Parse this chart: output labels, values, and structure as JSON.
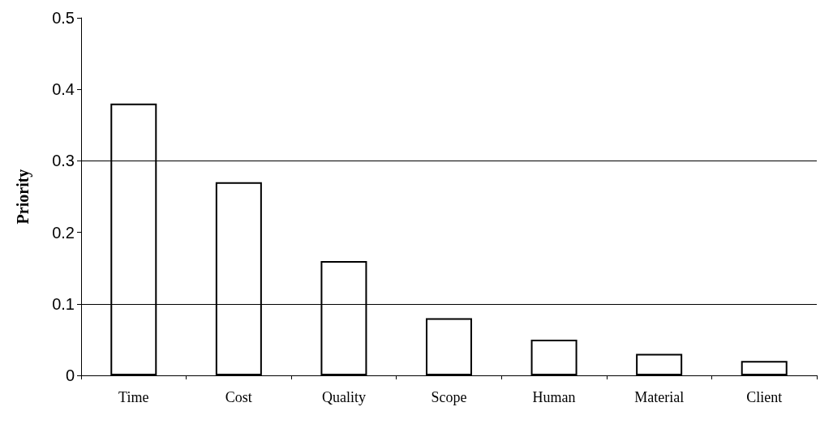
{
  "chart_data": {
    "type": "bar",
    "ylabel": "Priority",
    "categories": [
      "Time",
      "Cost",
      "Quality",
      "Scope",
      "Human",
      "Material",
      "Client"
    ],
    "values": [
      0.38,
      0.27,
      0.16,
      0.08,
      0.05,
      0.03,
      0.02
    ],
    "color": "#ffffff",
    "ylim": [
      0,
      0.5
    ],
    "yticks": [
      0,
      0.1,
      0.2,
      0.3,
      0.4,
      0.5
    ],
    "ref_lines": [
      {
        "axis": "y",
        "value": 0.1
      },
      {
        "axis": "y",
        "value": 0.3
      }
    ],
    "grid": false
  }
}
